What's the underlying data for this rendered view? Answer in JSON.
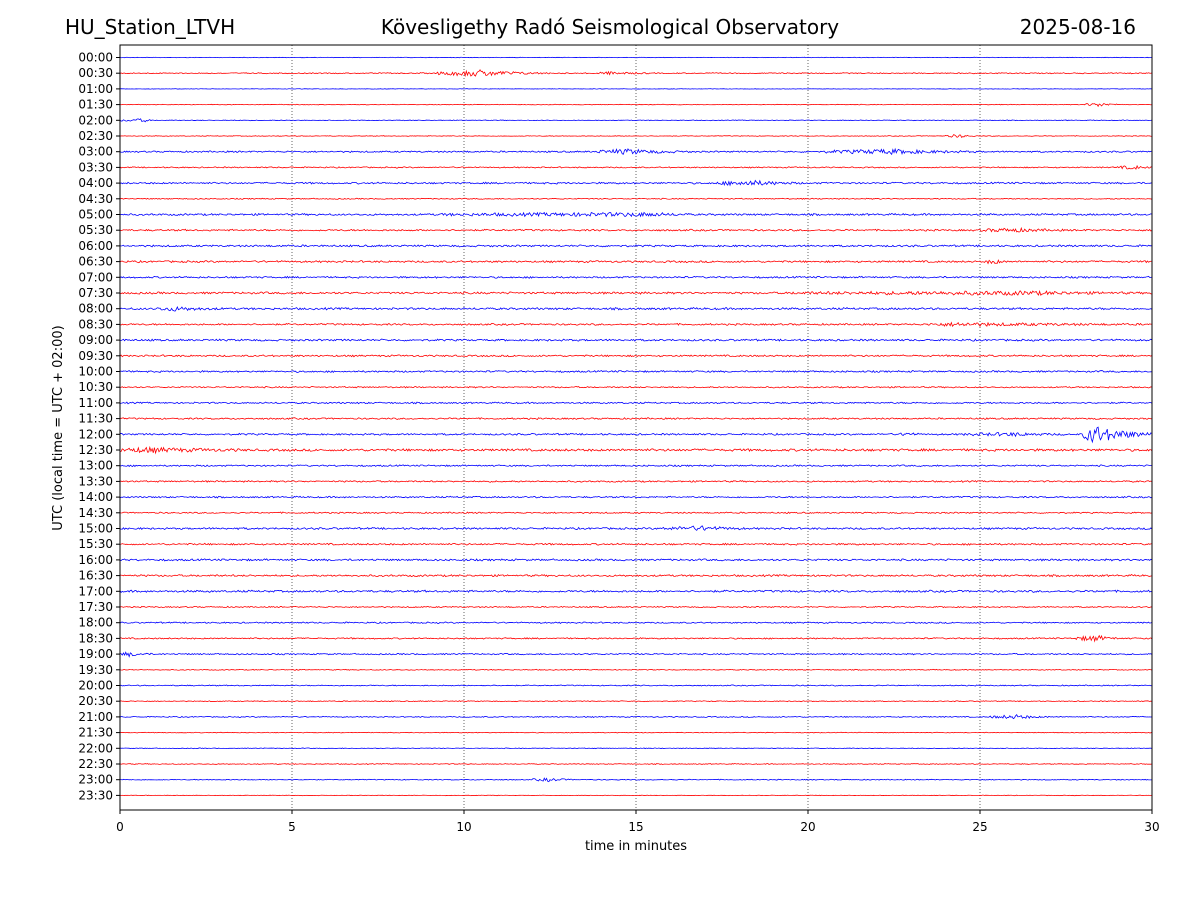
{
  "header": {
    "station": "HU_Station_LTVH",
    "title": "Kövesligethy Radó Seismological Observatory",
    "date": "2025-08-16"
  },
  "colors": {
    "even_trace": "#0000ff",
    "odd_trace": "#ff0000",
    "grid": "#000000"
  },
  "chart_data": {
    "type": "line",
    "subtype": "helicorder",
    "xlabel": "time in minutes",
    "ylabel": "UTC (local time = UTC + 02:00)",
    "xlim": [
      0,
      30
    ],
    "x_ticks": [
      "0",
      "5",
      "10",
      "15",
      "20",
      "25",
      "30"
    ],
    "grid": "vertical dotted at x = 5, 10, 15, 20, 25",
    "rows": [
      "00:00",
      "00:30",
      "01:00",
      "01:30",
      "02:00",
      "02:30",
      "03:00",
      "03:30",
      "04:00",
      "04:30",
      "05:00",
      "05:30",
      "06:00",
      "06:30",
      "07:00",
      "07:30",
      "08:00",
      "08:30",
      "09:00",
      "09:30",
      "10:00",
      "10:30",
      "11:00",
      "11:30",
      "12:00",
      "12:30",
      "13:00",
      "13:30",
      "14:00",
      "14:30",
      "15:00",
      "15:30",
      "16:00",
      "16:30",
      "17:00",
      "17:30",
      "18:00",
      "18:30",
      "19:00",
      "19:30",
      "20:00",
      "20:30",
      "21:00",
      "21:30",
      "22:00",
      "22:30",
      "23:00",
      "23:30"
    ],
    "row_colors": "alternating blue (on the hour) / red (half hour)",
    "noise_level": [
      0.3,
      0.6,
      0.25,
      0.35,
      0.4,
      0.4,
      0.9,
      0.7,
      1.0,
      0.6,
      1.1,
      1.0,
      1.1,
      1.1,
      1.0,
      1.2,
      1.2,
      1.0,
      1.1,
      1.0,
      1.0,
      0.8,
      0.9,
      0.9,
      1.0,
      1.4,
      0.9,
      0.9,
      0.9,
      0.8,
      1.1,
      1.0,
      1.1,
      1.1,
      1.2,
      0.7,
      0.8,
      0.8,
      0.8,
      0.5,
      0.6,
      0.5,
      0.6,
      0.4,
      0.4,
      0.5,
      0.5,
      0.3
    ],
    "events": [
      {
        "row": "00:30",
        "start_min": 9.2,
        "end_min": 12.5,
        "peak_min": 10.5,
        "amplitude": 3.0
      },
      {
        "row": "00:30",
        "start_min": 13.8,
        "end_min": 15.5,
        "peak_min": 14.3,
        "amplitude": 1.2
      },
      {
        "row": "01:30",
        "start_min": 28.0,
        "end_min": 29.2,
        "peak_min": 28.5,
        "amplitude": 1.8
      },
      {
        "row": "02:00",
        "start_min": 0.0,
        "end_min": 1.0,
        "peak_min": 0.7,
        "amplitude": 1.5
      },
      {
        "row": "02:30",
        "start_min": 24.0,
        "end_min": 24.9,
        "peak_min": 24.4,
        "amplitude": 1.6
      },
      {
        "row": "03:00",
        "start_min": 13.8,
        "end_min": 16.6,
        "peak_min": 14.8,
        "amplitude": 2.2
      },
      {
        "row": "03:00",
        "start_min": 20.5,
        "end_min": 25.0,
        "peak_min": 22.5,
        "amplitude": 2.0
      },
      {
        "row": "03:30",
        "start_min": 29.0,
        "end_min": 30.0,
        "peak_min": 29.5,
        "amplitude": 1.6
      },
      {
        "row": "04:00",
        "start_min": 17.3,
        "end_min": 19.8,
        "peak_min": 18.4,
        "amplitude": 2.2
      },
      {
        "row": "05:00",
        "start_min": 9.2,
        "end_min": 16.6,
        "peak_min": 15.5,
        "amplitude": 1.4
      },
      {
        "row": "05:30",
        "start_min": 25.0,
        "end_min": 27.5,
        "peak_min": 26.0,
        "amplitude": 1.5
      },
      {
        "row": "06:30",
        "start_min": 25.2,
        "end_min": 25.7,
        "peak_min": 25.4,
        "amplitude": 2.4
      },
      {
        "row": "07:30",
        "start_min": 19.5,
        "end_min": 29.5,
        "peak_min": 26.5,
        "amplitude": 1.3
      },
      {
        "row": "08:00",
        "start_min": 1.0,
        "end_min": 3.0,
        "peak_min": 1.6,
        "amplitude": 1.6
      },
      {
        "row": "08:30",
        "start_min": 23.5,
        "end_min": 30.0,
        "peak_min": 24.3,
        "amplitude": 1.4
      },
      {
        "row": "12:00",
        "start_min": 22.7,
        "end_min": 23.2,
        "peak_min": 22.9,
        "amplitude": 1.8
      },
      {
        "row": "12:00",
        "start_min": 24.5,
        "end_min": 27.5,
        "peak_min": 26.0,
        "amplitude": 1.3
      },
      {
        "row": "12:00",
        "start_min": 28.0,
        "end_min": 30.0,
        "peak_min": 28.3,
        "amplitude": 9.0
      },
      {
        "row": "12:30",
        "start_min": 0.0,
        "end_min": 3.5,
        "peak_min": 0.8,
        "amplitude": 2.0
      },
      {
        "row": "15:00",
        "start_min": 15.8,
        "end_min": 18.2,
        "peak_min": 17.0,
        "amplitude": 1.8
      },
      {
        "row": "18:30",
        "start_min": 27.8,
        "end_min": 29.0,
        "peak_min": 28.4,
        "amplitude": 2.8
      },
      {
        "row": "19:00",
        "start_min": 0.0,
        "end_min": 0.9,
        "peak_min": 0.3,
        "amplitude": 2.0
      },
      {
        "row": "21:00",
        "start_min": 25.3,
        "end_min": 27.0,
        "peak_min": 26.1,
        "amplitude": 1.9
      },
      {
        "row": "23:00",
        "start_min": 12.0,
        "end_min": 13.2,
        "peak_min": 12.5,
        "amplitude": 1.6
      }
    ]
  }
}
